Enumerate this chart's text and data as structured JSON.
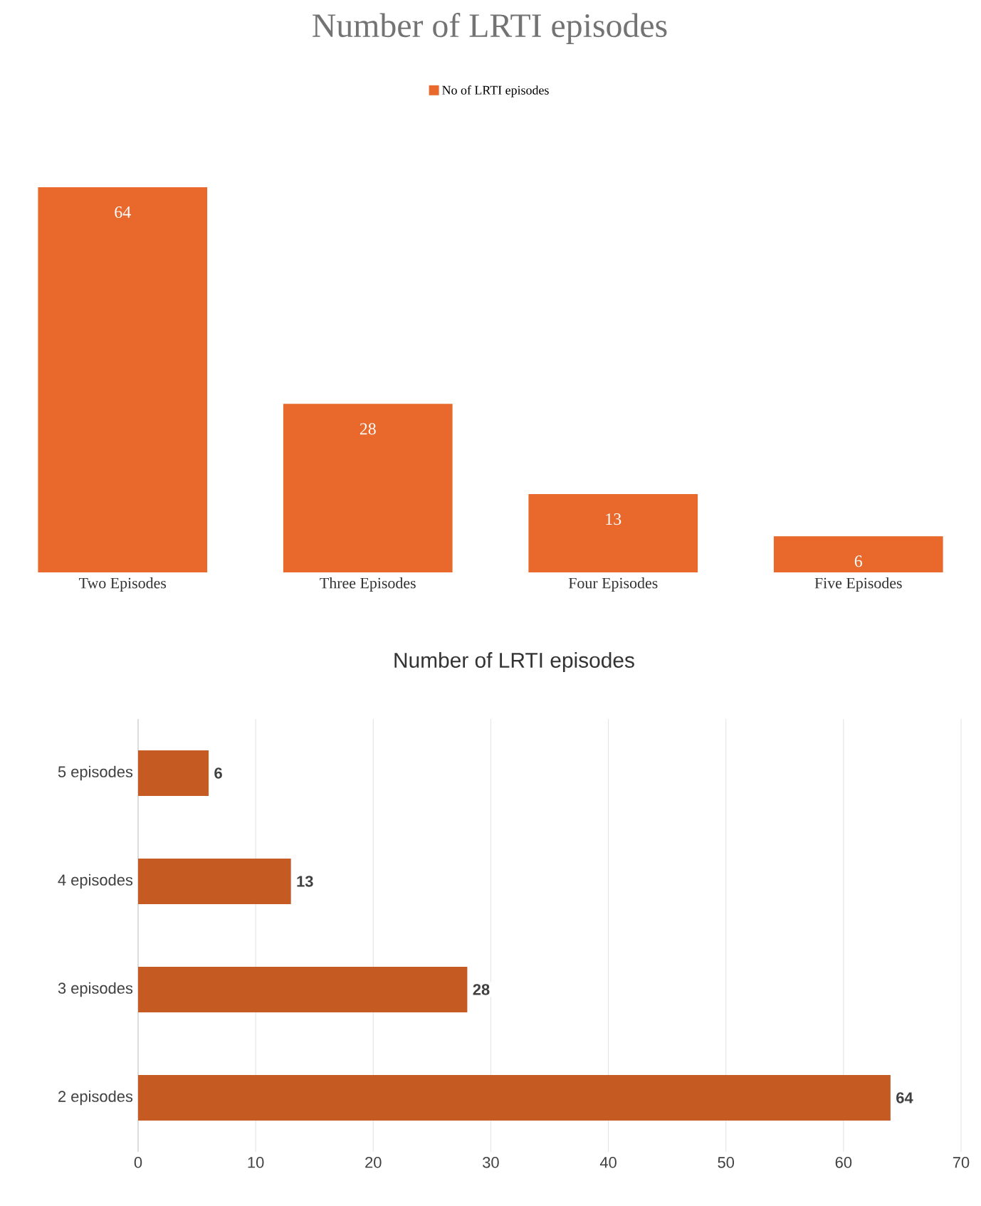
{
  "chart_data": [
    {
      "type": "bar",
      "title": "Number of LRTI episodes",
      "categories": [
        "Two Episodes",
        "Three Episodes",
        "Four Episodes",
        "Five Episodes"
      ],
      "series": [
        {
          "name": "No of LRTI episodes",
          "color": "#e8692b",
          "values": [
            64,
            28,
            13,
            6
          ]
        }
      ],
      "legend": "top",
      "data_labels": true
    },
    {
      "type": "bar",
      "orientation": "horizontal",
      "title": "Number of LRTI episodes",
      "categories": [
        "5 episodes",
        "4 episodes",
        "3 episodes",
        "2 episodes"
      ],
      "values": [
        6,
        13,
        28,
        64
      ],
      "color": "#c55a22",
      "xlim": [
        0,
        70
      ],
      "xticks": [
        0,
        10,
        20,
        30,
        40,
        50,
        60,
        70
      ],
      "grid": "x",
      "data_labels": true
    }
  ]
}
